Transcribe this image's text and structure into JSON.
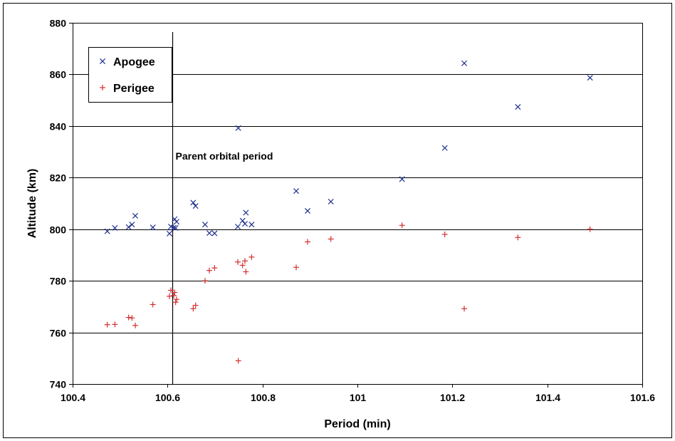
{
  "chart_data": {
    "type": "scatter",
    "title": "",
    "xlabel": "Period  (min)",
    "ylabel": "Altitude  (km)",
    "xlim": [
      100.4,
      101.6
    ],
    "ylim": [
      740,
      880
    ],
    "x_ticks": [
      "100.4",
      "100.6",
      "100.8",
      "101",
      "101.2",
      "101.4",
      "101.6"
    ],
    "y_ticks": [
      "740",
      "760",
      "780",
      "800",
      "820",
      "840",
      "860",
      "880"
    ],
    "grid": "horizontal",
    "legend_position": "top-left",
    "annotation": {
      "text": "Parent orbital period",
      "x": 100.61
    },
    "series": [
      {
        "name": "Apogee",
        "marker": "x",
        "color": "#1F2F8F",
        "points": [
          [
            100.473,
            799.2
          ],
          [
            100.489,
            800.5
          ],
          [
            100.518,
            800.8
          ],
          [
            100.525,
            801.8
          ],
          [
            100.532,
            805.2
          ],
          [
            100.569,
            800.7
          ],
          [
            100.604,
            798.3
          ],
          [
            100.607,
            801.0
          ],
          [
            100.613,
            800.6
          ],
          [
            100.615,
            803.9
          ],
          [
            100.617,
            800.5
          ],
          [
            100.619,
            802.9
          ],
          [
            100.654,
            810.3
          ],
          [
            100.659,
            809.0
          ],
          [
            100.679,
            801.8
          ],
          [
            100.688,
            798.5
          ],
          [
            100.699,
            798.4
          ],
          [
            100.749,
            839.2
          ],
          [
            100.748,
            801.0
          ],
          [
            100.758,
            803.3
          ],
          [
            100.763,
            802.1
          ],
          [
            100.765,
            806.4
          ],
          [
            100.777,
            801.8
          ],
          [
            100.871,
            814.8
          ],
          [
            100.895,
            807.1
          ],
          [
            100.944,
            810.7
          ],
          [
            101.094,
            819.4
          ],
          [
            101.184,
            831.5
          ],
          [
            101.225,
            864.3
          ],
          [
            101.338,
            847.4
          ],
          [
            101.49,
            858.7
          ]
        ]
      },
      {
        "name": "Perigee",
        "marker": "+",
        "color": "#D32F2F",
        "points": [
          [
            100.473,
            763.0
          ],
          [
            100.489,
            763.1
          ],
          [
            100.518,
            765.8
          ],
          [
            100.525,
            765.6
          ],
          [
            100.532,
            762.7
          ],
          [
            100.569,
            770.8
          ],
          [
            100.604,
            774.0
          ],
          [
            100.607,
            776.3
          ],
          [
            100.613,
            774.3
          ],
          [
            100.615,
            775.5
          ],
          [
            100.617,
            771.7
          ],
          [
            100.619,
            772.8
          ],
          [
            100.654,
            769.2
          ],
          [
            100.659,
            770.5
          ],
          [
            100.679,
            780.0
          ],
          [
            100.688,
            784.0
          ],
          [
            100.699,
            785.0
          ],
          [
            100.749,
            749.0
          ],
          [
            100.748,
            787.3
          ],
          [
            100.758,
            786.0
          ],
          [
            100.763,
            787.7
          ],
          [
            100.765,
            783.5
          ],
          [
            100.777,
            789.2
          ],
          [
            100.871,
            785.2
          ],
          [
            100.895,
            795.1
          ],
          [
            100.944,
            796.2
          ],
          [
            101.094,
            801.5
          ],
          [
            101.184,
            798.0
          ],
          [
            101.225,
            769.2
          ],
          [
            101.338,
            796.8
          ],
          [
            101.49,
            800.0
          ]
        ]
      }
    ]
  }
}
